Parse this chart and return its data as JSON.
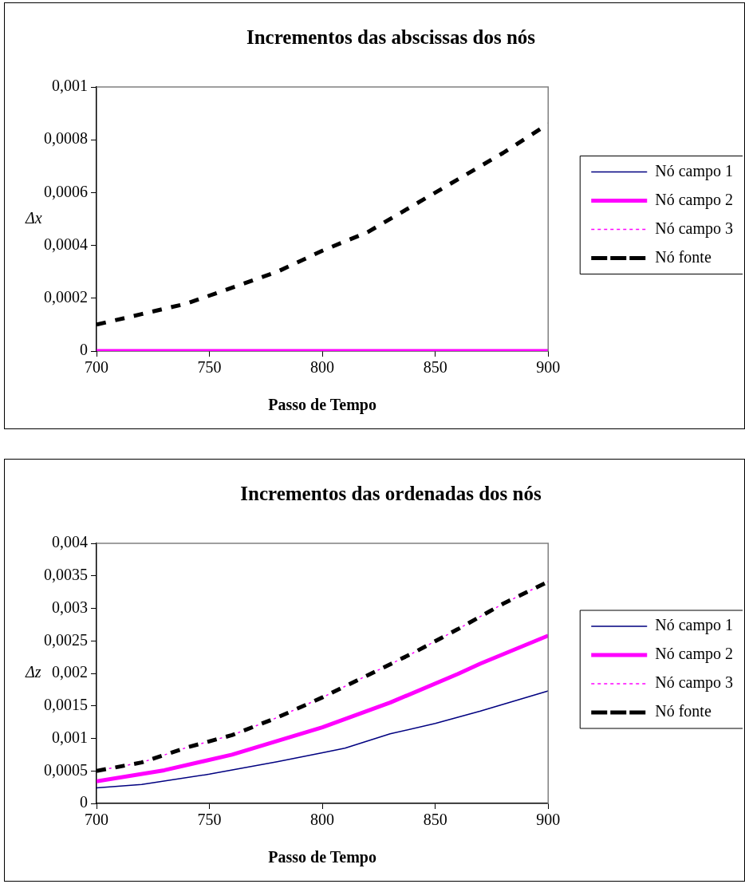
{
  "chart_data": [
    {
      "type": "line",
      "title": "Incrementos das abscissas dos nós",
      "xlabel": "Passo de Tempo",
      "ylabel": "Δx",
      "xlim": [
        700,
        900
      ],
      "xticks": [
        700,
        750,
        800,
        850,
        900
      ],
      "ylim": [
        0,
        0.001
      ],
      "yticks": [
        {
          "value": 0,
          "label": "0"
        },
        {
          "value": 0.0002,
          "label": "0,0002"
        },
        {
          "value": 0.0004,
          "label": "0,0004"
        },
        {
          "value": 0.0006,
          "label": "0,0006"
        },
        {
          "value": 0.0008,
          "label": "0,0008"
        },
        {
          "value": 0.001,
          "label": "0,001"
        }
      ],
      "grid": false,
      "legend": "right",
      "marker": "none",
      "series": [
        {
          "name": "Nó campo 1",
          "color": "#000080",
          "line_style": "solid"
        },
        {
          "name": "Nó campo 2",
          "color": "#ff00ff",
          "line_style": "solid",
          "x": [
            700,
            900
          ],
          "values": [
            0,
            0
          ]
        },
        {
          "name": "Nó campo 3",
          "color": "#ff00ff",
          "line_style": "dotted"
        },
        {
          "name": "Nó fonte",
          "color": "#000000",
          "line_style": "dashed",
          "x": [
            700,
            720,
            740,
            760,
            780,
            800,
            820,
            840,
            860,
            880,
            900
          ],
          "values": [
            0.0001,
            0.00014,
            0.00018,
            0.00024,
            0.0003,
            0.00038,
            0.00045,
            0.00055,
            0.00065,
            0.00075,
            0.00086
          ]
        }
      ]
    },
    {
      "type": "line",
      "title": "Incrementos das ordenadas dos nós",
      "xlabel": "Passo de Tempo",
      "ylabel": "Δz",
      "xlim": [
        700,
        900
      ],
      "xticks": [
        700,
        750,
        800,
        850,
        900
      ],
      "ylim": [
        0,
        0.004
      ],
      "yticks": [
        {
          "value": 0,
          "label": "0"
        },
        {
          "value": 0.0005,
          "label": "0,0005"
        },
        {
          "value": 0.001,
          "label": "0,001"
        },
        {
          "value": 0.0015,
          "label": "0,0015"
        },
        {
          "value": 0.002,
          "label": "0,002"
        },
        {
          "value": 0.0025,
          "label": "0,0025"
        },
        {
          "value": 0.003,
          "label": "0,003"
        },
        {
          "value": 0.0035,
          "label": "0,0035"
        },
        {
          "value": 0.004,
          "label": "0,004"
        }
      ],
      "grid": false,
      "legend": "right",
      "marker": "none",
      "series": [
        {
          "name": "Nó campo 1",
          "color": "#000080",
          "line_style": "solid",
          "x": [
            700,
            720,
            750,
            780,
            800,
            810,
            830,
            850,
            870,
            900
          ],
          "values": [
            0.00024,
            0.00029,
            0.00045,
            0.00064,
            0.00078,
            0.00085,
            0.00107,
            0.00123,
            0.00142,
            0.00173
          ]
        },
        {
          "name": "Nó campo 2",
          "color": "#ff00ff",
          "line_style": "solid",
          "x": [
            700,
            730,
            760,
            800,
            830,
            860,
            870,
            900
          ],
          "values": [
            0.00034,
            0.00051,
            0.00075,
            0.00117,
            0.00155,
            0.00199,
            0.00215,
            0.00258
          ]
        },
        {
          "name": "Nó campo 3",
          "color": "#ff00ff",
          "line_style": "dotted",
          "x": [
            700,
            720,
            740,
            760,
            780,
            800,
            820,
            840,
            860,
            880,
            900
          ],
          "values": [
            0.0005,
            0.00063,
            0.00086,
            0.00105,
            0.00132,
            0.00163,
            0.00197,
            0.00231,
            0.00268,
            0.00307,
            0.00341
          ]
        },
        {
          "name": "Nó fonte",
          "color": "#000000",
          "line_style": "dashed",
          "x": [
            700,
            720,
            740,
            760,
            780,
            800,
            820,
            840,
            860,
            880,
            900
          ],
          "values": [
            0.0005,
            0.00063,
            0.00086,
            0.00105,
            0.00132,
            0.00163,
            0.00197,
            0.00231,
            0.00268,
            0.00307,
            0.00341
          ]
        }
      ]
    }
  ]
}
